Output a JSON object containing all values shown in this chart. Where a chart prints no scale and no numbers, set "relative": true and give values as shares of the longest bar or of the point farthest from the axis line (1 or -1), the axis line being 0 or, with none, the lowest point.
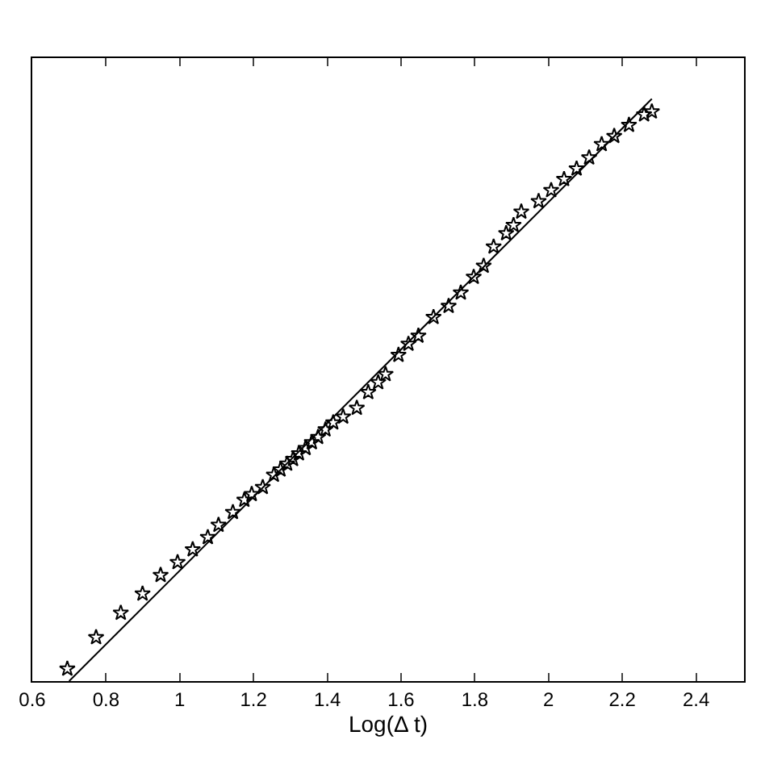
{
  "chart_data": {
    "type": "scatter",
    "xlabel": "Log(Δ t)",
    "relative": true,
    "tick_labels": "x",
    "xlim": [
      0.6,
      2.53
    ],
    "xticks": [
      0.6,
      0.8,
      1,
      1.2,
      1.4,
      1.6,
      1.8,
      2,
      2.2,
      2.4
    ],
    "series": [
      {
        "marker": "star",
        "color": "#000000",
        "x": [
          0.695,
          0.773,
          0.84,
          0.899,
          0.948,
          0.994,
          1.035,
          1.076,
          1.105,
          1.144,
          1.175,
          1.195,
          1.225,
          1.255,
          1.273,
          1.291,
          1.307,
          1.323,
          1.341,
          1.358,
          1.375,
          1.395,
          1.416,
          1.443,
          1.48,
          1.511,
          1.538,
          1.558,
          1.593,
          1.62,
          1.647,
          1.688,
          1.729,
          1.762,
          1.797,
          1.824,
          1.851,
          1.885,
          1.905,
          1.926,
          1.973,
          2.007,
          2.042,
          2.076,
          2.11,
          2.144,
          2.178,
          2.218,
          2.259,
          2.28
        ],
        "values": [
          0.021,
          0.075,
          0.117,
          0.15,
          0.182,
          0.204,
          0.226,
          0.247,
          0.268,
          0.29,
          0.311,
          0.321,
          0.333,
          0.354,
          0.363,
          0.373,
          0.381,
          0.391,
          0.4,
          0.41,
          0.419,
          0.432,
          0.444,
          0.454,
          0.469,
          0.496,
          0.513,
          0.527,
          0.56,
          0.579,
          0.593,
          0.625,
          0.644,
          0.667,
          0.694,
          0.713,
          0.746,
          0.769,
          0.783,
          0.806,
          0.824,
          0.843,
          0.862,
          0.88,
          0.899,
          0.922,
          0.936,
          0.955,
          0.973,
          0.978
        ]
      },
      {
        "type": "line",
        "color": "#000000",
        "line_style": "solid",
        "x": [
          0.7,
          2.28
        ],
        "values": [
          0,
          1
        ]
      }
    ]
  }
}
